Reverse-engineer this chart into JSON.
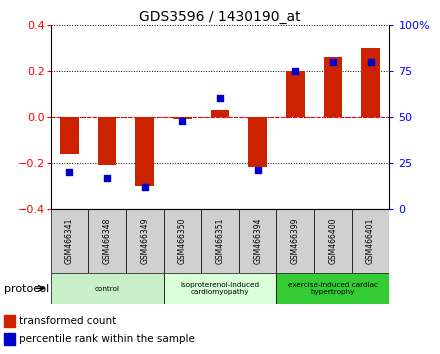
{
  "title": "GDS3596 / 1430190_at",
  "samples": [
    "GSM466341",
    "GSM466348",
    "GSM466349",
    "GSM466350",
    "GSM466351",
    "GSM466394",
    "GSM466399",
    "GSM466400",
    "GSM466401"
  ],
  "red_values": [
    -0.16,
    -0.21,
    -0.3,
    -0.01,
    0.03,
    -0.22,
    0.2,
    0.26,
    0.3
  ],
  "blue_values": [
    20,
    17,
    12,
    48,
    60,
    21,
    75,
    80,
    80
  ],
  "groups": [
    {
      "label": "control",
      "start": 0,
      "end": 3,
      "color": "#c8f0c8"
    },
    {
      "label": "isoproterenol-induced\ncardiomyopathy",
      "start": 3,
      "end": 6,
      "color": "#d8ffd8"
    },
    {
      "label": "exercise-induced cardiac\nhypertrophy",
      "start": 6,
      "end": 9,
      "color": "#33cc33"
    }
  ],
  "ylim_left": [
    -0.4,
    0.4
  ],
  "ylim_right": [
    0,
    100
  ],
  "yticks_left": [
    -0.4,
    -0.2,
    0.0,
    0.2,
    0.4
  ],
  "yticks_right": [
    0,
    25,
    50,
    75,
    100
  ],
  "ytick_labels_right": [
    "0",
    "25",
    "50",
    "75",
    "100%"
  ],
  "bar_width": 0.5,
  "red_color": "#cc2200",
  "blue_color": "#0000cc",
  "grid_color": "#555555",
  "sample_box_color": "#d0d0d0",
  "protocol_label": "protocol",
  "legend_red": "transformed count",
  "legend_blue": "percentile rank within the sample"
}
